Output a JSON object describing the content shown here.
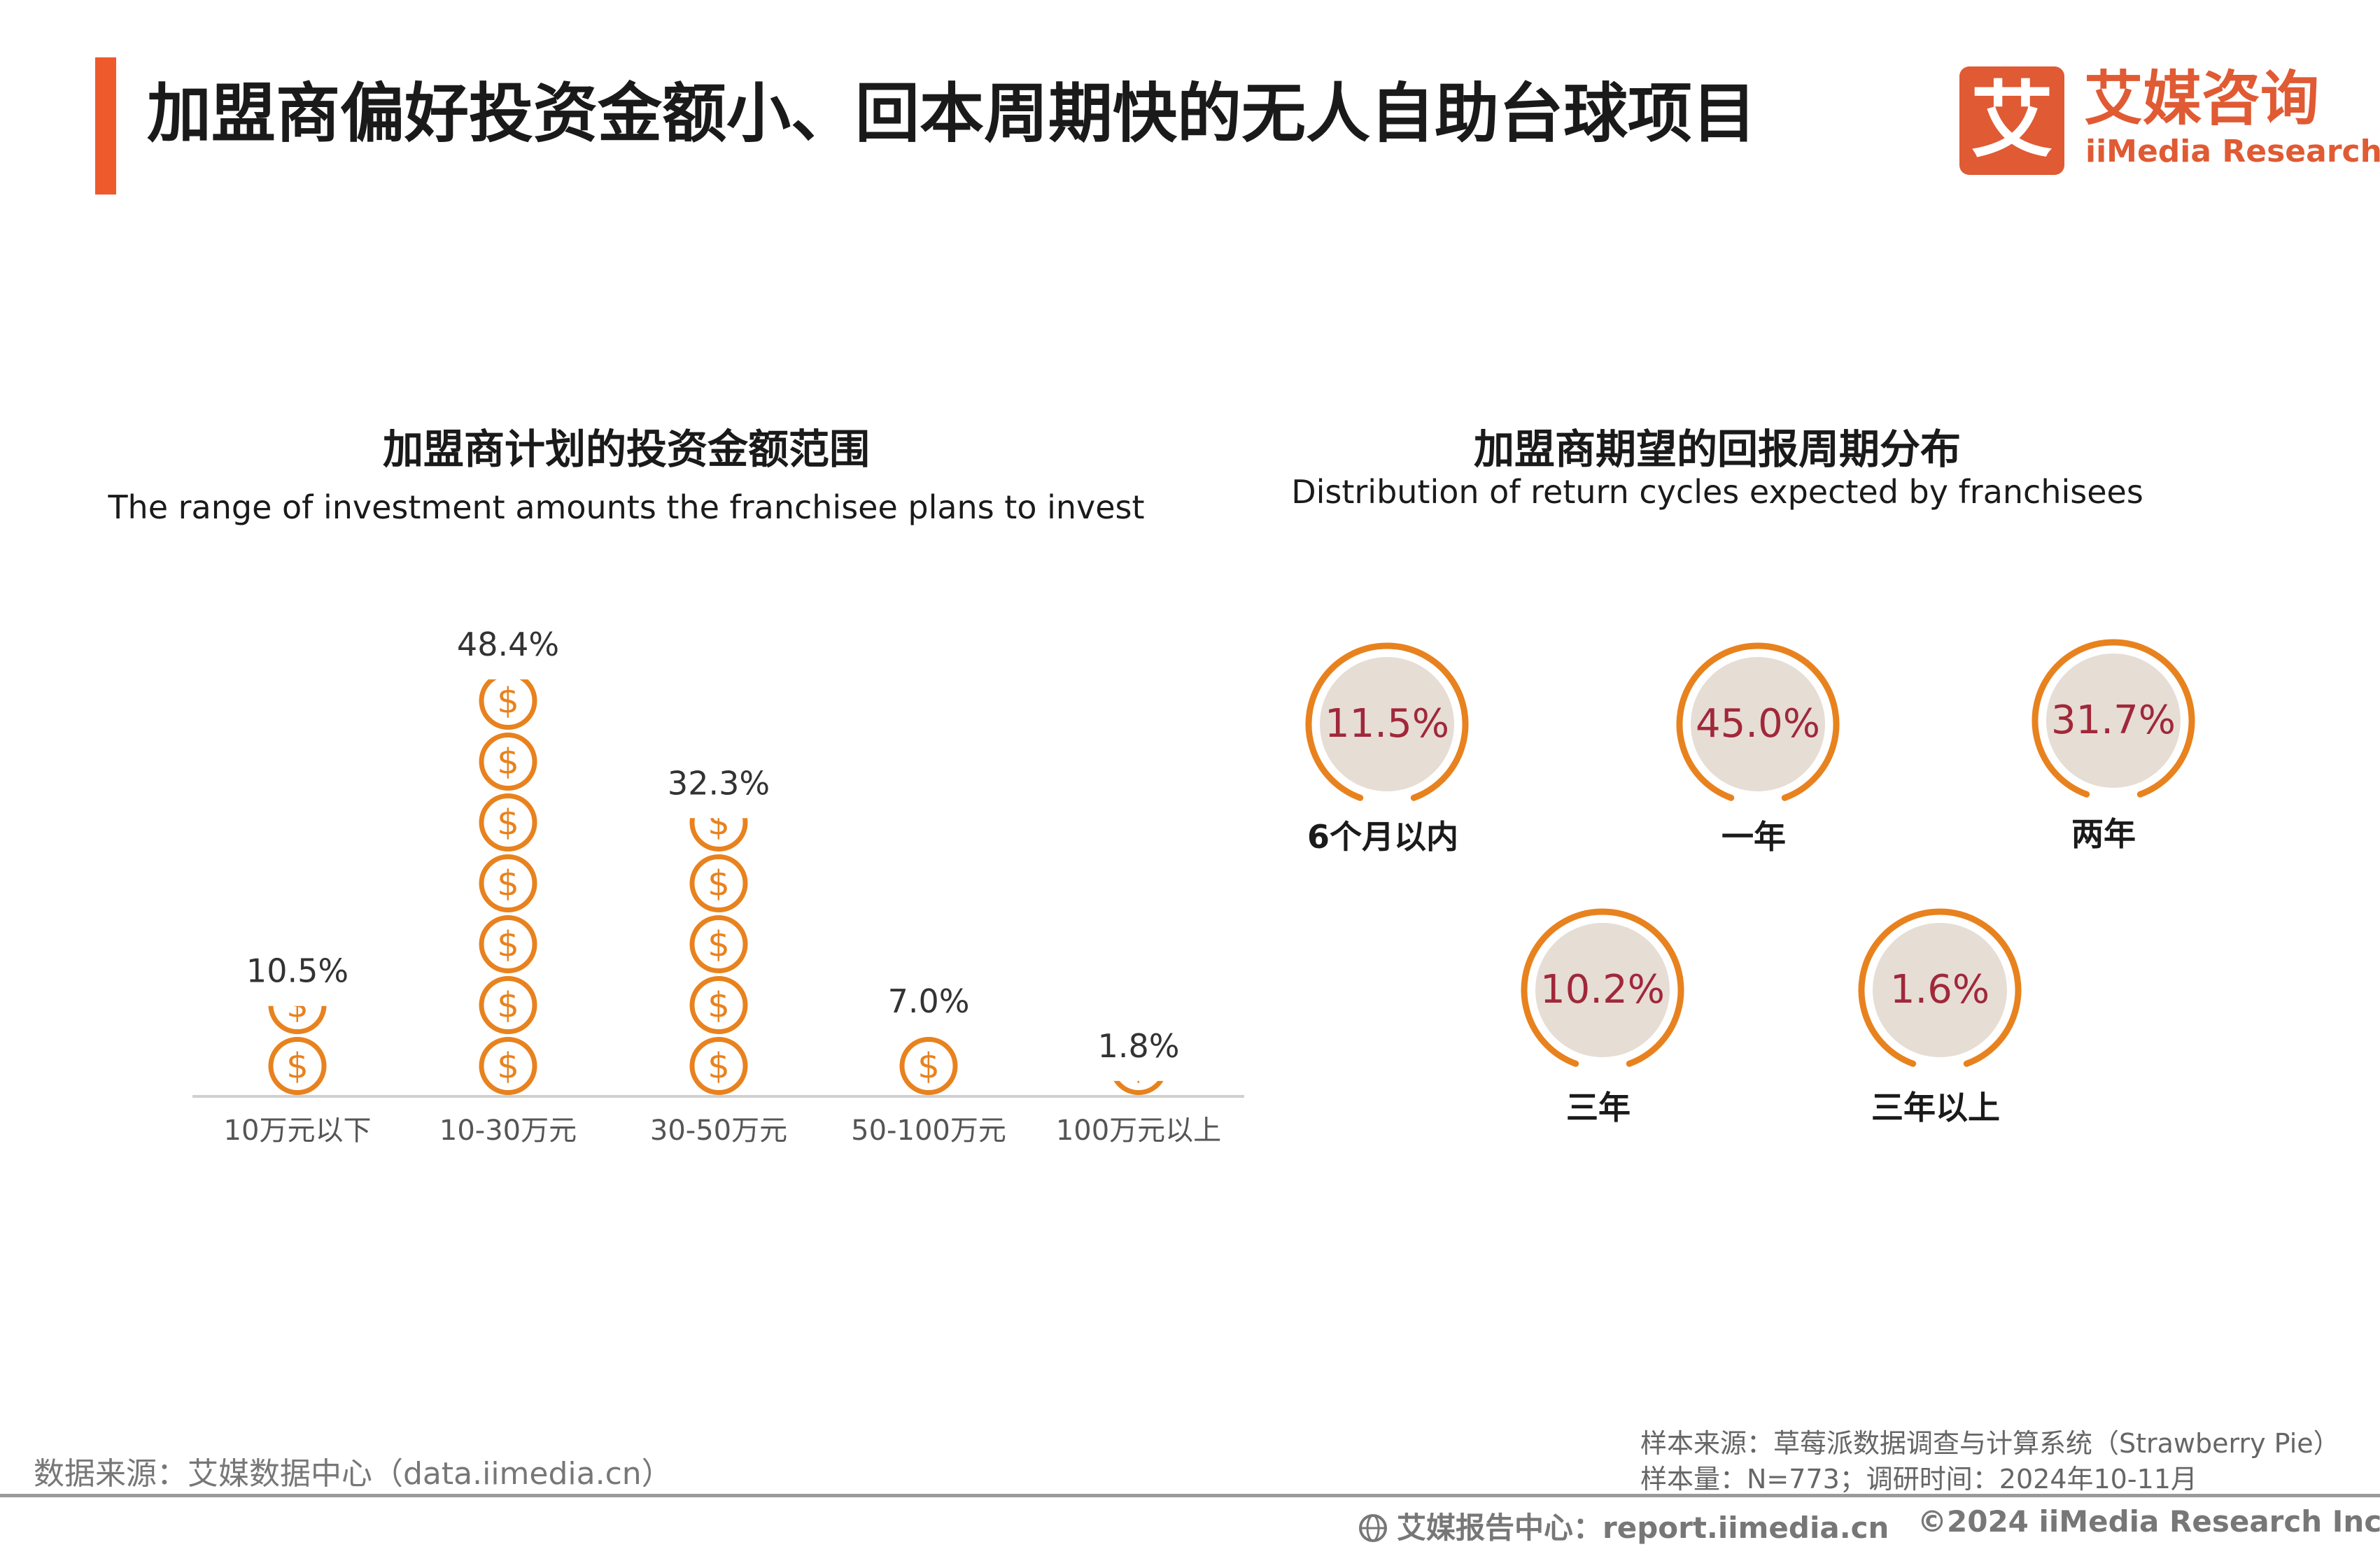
{
  "header": {
    "title": "加盟商偏好投资金额小、回本周期快的无人自助台球项目",
    "logo_cn": "艾媒咨询",
    "logo_en": "iiMedia Research",
    "logo_mark": "艾",
    "accent_color": "#ee5a2c"
  },
  "chart_data": [
    {
      "type": "bar",
      "title": "加盟商计划的投资金额范围",
      "subtitle": "The range of investment amounts the franchisee plans to invest",
      "categories": [
        "10万元以下",
        "10-30万元",
        "30-50万元",
        "50-100万元",
        "100万元以上"
      ],
      "values": [
        10.5,
        48.4,
        32.3,
        7.0,
        1.8
      ],
      "value_labels": [
        "10.5%",
        "48.4%",
        "32.3%",
        "7.0%",
        "1.8%"
      ],
      "unit": "%",
      "ylim": [
        0,
        48.4
      ],
      "mark": "coin-icon",
      "color": "#e8821e"
    },
    {
      "type": "pie",
      "title": "加盟商期望的回报周期分布",
      "subtitle": "Distribution of return cycles expected by franchisees",
      "categories": [
        "6个月以内",
        "一年",
        "两年",
        "三年",
        "三年以上"
      ],
      "values": [
        11.5,
        45.0,
        31.7,
        10.2,
        1.6
      ],
      "value_labels": [
        "11.5%",
        "45.0%",
        "31.7%",
        "10.2%",
        "1.6%"
      ],
      "unit": "%",
      "ring_color": "#e8821e",
      "inner_color": "#e6ddd5",
      "value_color": "#a0283a"
    }
  ],
  "footer": {
    "data_source": "数据来源：艾媒数据中心（data.iimedia.cn）",
    "sample_source": "样本来源：草莓派数据调查与计算系统（Strawberry Pie）",
    "sample_size": "样本量：N=773；调研时间：2024年10-11月",
    "report_center": "艾媒报告中心：report.iimedia.cn",
    "copyright": "©2024  iiMedia Research  Inc"
  }
}
